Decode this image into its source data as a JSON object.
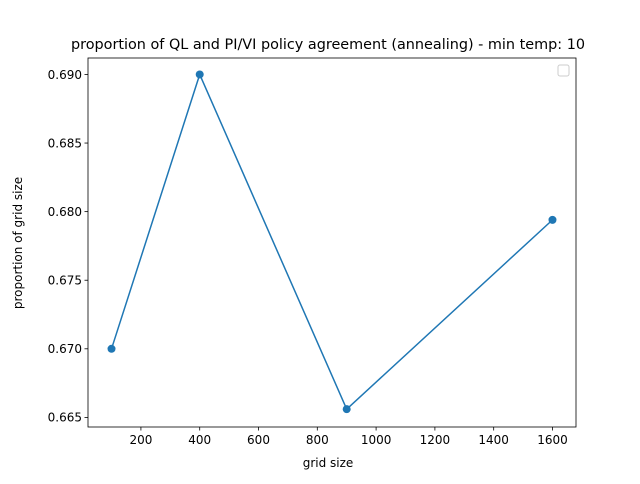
{
  "chart_data": {
    "type": "line",
    "title": "proportion of QL and PI/VI policy agreement (annealing) - min temp: 10",
    "xlabel": "grid size",
    "ylabel": "proportion of grid size",
    "xlim": [
      20,
      1680
    ],
    "ylim": [
      0.6643,
      0.6912
    ],
    "xticks": [
      200,
      400,
      600,
      800,
      1000,
      1200,
      1400,
      1600
    ],
    "xtick_labels": [
      "200",
      "400",
      "600",
      "800",
      "1000",
      "1200",
      "1400",
      "1600"
    ],
    "yticks": [
      0.665,
      0.67,
      0.675,
      0.68,
      0.685,
      0.69
    ],
    "ytick_labels": [
      "0.665",
      "0.670",
      "0.675",
      "0.680",
      "0.685",
      "0.690"
    ],
    "grid": false,
    "legend": {
      "position": "top-right",
      "entries": []
    },
    "series": [
      {
        "color": "#1f77b4",
        "marker": "circle",
        "x": [
          100,
          400,
          900,
          1600
        ],
        "y": [
          0.67,
          0.69,
          0.6656,
          0.6794
        ]
      }
    ]
  }
}
